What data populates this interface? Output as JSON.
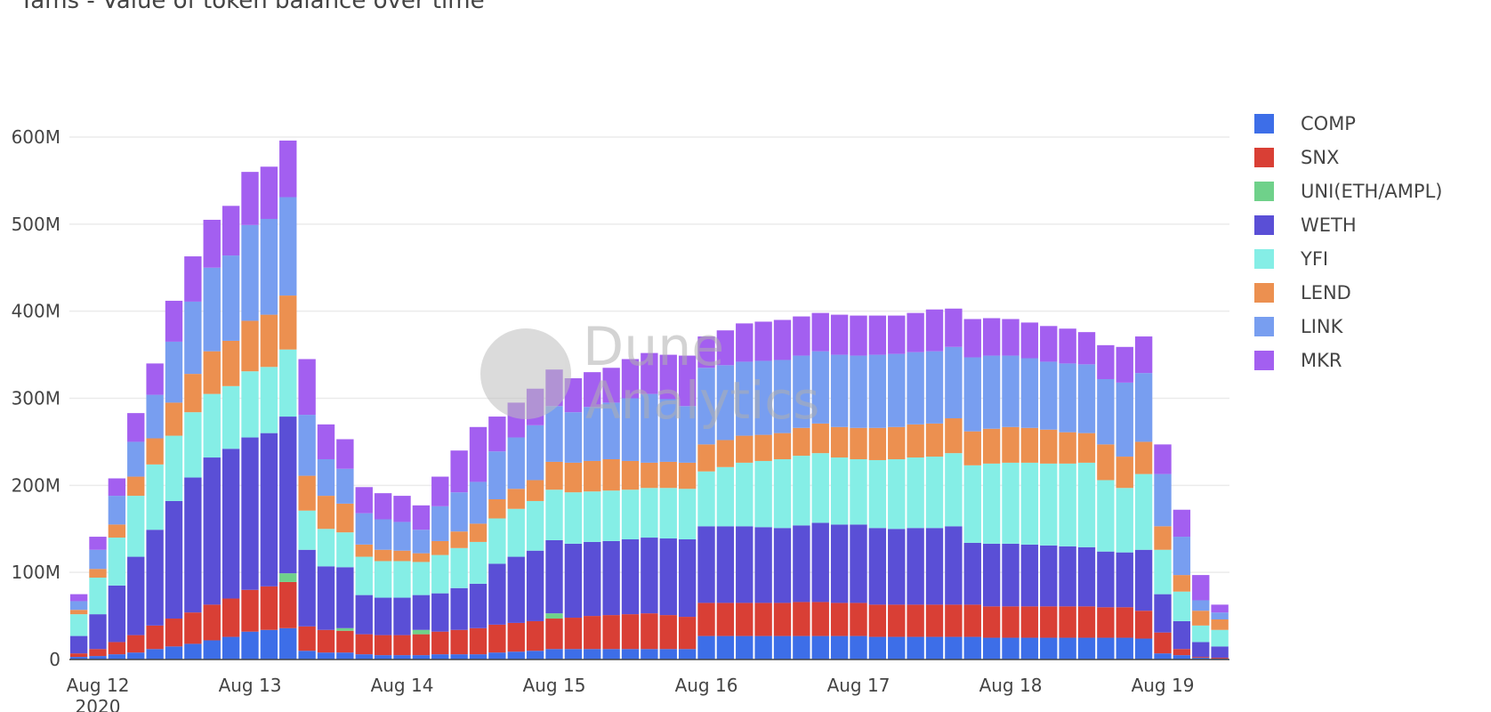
{
  "chart_data": {
    "type": "bar",
    "stacked": true,
    "title": "Yams - Value of token balance over time",
    "xlabel": "",
    "ylabel": "",
    "ylim": [
      0,
      620000000
    ],
    "y_ticks": [
      0,
      100000000,
      200000000,
      300000000,
      400000000,
      500000000,
      600000000
    ],
    "y_tick_labels": [
      "0",
      "100M",
      "200M",
      "300M",
      "400M",
      "500M",
      "600M"
    ],
    "x_ticks": [
      "2020-08-12",
      "2020-08-13",
      "2020-08-14",
      "2020-08-15",
      "2020-08-16",
      "2020-08-17",
      "2020-08-18",
      "2020-08-19"
    ],
    "x_tick_labels": [
      "Aug 12",
      "Aug 13",
      "Aug 14",
      "Aug 15",
      "Aug 16",
      "Aug 17",
      "Aug 18",
      "Aug 19"
    ],
    "x_year_label": "2020",
    "grid": true,
    "legend_position": "right",
    "value_unit": "M",
    "x": [
      "2020-08-11 21:00",
      "2020-08-12 00:00",
      "2020-08-12 03:00",
      "2020-08-12 06:00",
      "2020-08-12 09:00",
      "2020-08-12 12:00",
      "2020-08-12 15:00",
      "2020-08-12 18:00",
      "2020-08-12 21:00",
      "2020-08-13 00:00",
      "2020-08-13 03:00",
      "2020-08-13 06:00",
      "2020-08-13 09:00",
      "2020-08-13 12:00",
      "2020-08-13 15:00",
      "2020-08-13 18:00",
      "2020-08-13 21:00",
      "2020-08-14 00:00",
      "2020-08-14 03:00",
      "2020-08-14 06:00",
      "2020-08-14 09:00",
      "2020-08-14 12:00",
      "2020-08-14 15:00",
      "2020-08-14 18:00",
      "2020-08-14 21:00",
      "2020-08-15 00:00",
      "2020-08-15 03:00",
      "2020-08-15 06:00",
      "2020-08-15 09:00",
      "2020-08-15 12:00",
      "2020-08-15 15:00",
      "2020-08-15 18:00",
      "2020-08-15 21:00",
      "2020-08-16 00:00",
      "2020-08-16 03:00",
      "2020-08-16 06:00",
      "2020-08-16 09:00",
      "2020-08-16 12:00",
      "2020-08-16 15:00",
      "2020-08-16 18:00",
      "2020-08-16 21:00",
      "2020-08-17 00:00",
      "2020-08-17 03:00",
      "2020-08-17 06:00",
      "2020-08-17 09:00",
      "2020-08-17 12:00",
      "2020-08-17 15:00",
      "2020-08-17 18:00",
      "2020-08-17 21:00",
      "2020-08-18 00:00",
      "2020-08-18 03:00",
      "2020-08-18 06:00",
      "2020-08-18 09:00",
      "2020-08-18 12:00",
      "2020-08-18 15:00",
      "2020-08-18 18:00",
      "2020-08-18 21:00",
      "2020-08-19 00:00",
      "2020-08-19 03:00",
      "2020-08-19 06:00",
      "2020-08-19 09:00"
    ],
    "series": [
      {
        "name": "COMP",
        "color": "#3d6ee8",
        "values": [
          3,
          4,
          6,
          8,
          12,
          15,
          18,
          22,
          26,
          32,
          34,
          36,
          10,
          8,
          8,
          6,
          5,
          5,
          5,
          6,
          6,
          6,
          8,
          9,
          10,
          12,
          12,
          12,
          12,
          12,
          12,
          12,
          12,
          27,
          27,
          27,
          27,
          27,
          27,
          27,
          27,
          27,
          26,
          26,
          26,
          26,
          26,
          26,
          25,
          25,
          25,
          25,
          25,
          25,
          25,
          25,
          24,
          7,
          5,
          2,
          1
        ]
      },
      {
        "name": "SNX",
        "color": "#d93f35",
        "values": [
          4,
          8,
          14,
          20,
          27,
          32,
          36,
          41,
          44,
          48,
          50,
          53,
          28,
          26,
          25,
          23,
          23,
          23,
          24,
          26,
          28,
          30,
          32,
          33,
          34,
          35,
          36,
          38,
          39,
          40,
          41,
          39,
          37,
          38,
          38,
          38,
          38,
          38,
          39,
          39,
          38,
          38,
          37,
          37,
          37,
          37,
          37,
          37,
          36,
          36,
          36,
          36,
          36,
          36,
          35,
          35,
          32,
          24,
          7,
          1,
          1
        ]
      },
      {
        "name": "UNI(ETH/AMPL)",
        "color": "#6fd18a",
        "values": [
          0,
          0,
          0,
          0,
          0,
          0,
          0,
          0,
          0,
          0,
          0,
          10,
          0,
          0,
          3,
          0,
          0,
          0,
          5,
          0,
          0,
          0,
          0,
          0,
          0,
          6,
          0,
          0,
          0,
          0,
          0,
          0,
          0,
          0,
          0,
          0,
          0,
          0,
          0,
          0,
          0,
          0,
          0,
          0,
          0,
          0,
          0,
          0,
          0,
          0,
          0,
          0,
          0,
          0,
          0,
          0,
          0,
          0,
          0,
          0,
          0
        ]
      },
      {
        "name": "WETH",
        "color": "#5a4fd6",
        "values": [
          20,
          40,
          65,
          90,
          110,
          135,
          155,
          169,
          172,
          175,
          176,
          180,
          88,
          73,
          70,
          45,
          43,
          43,
          40,
          44,
          48,
          51,
          70,
          76,
          81,
          84,
          85,
          85,
          85,
          86,
          87,
          88,
          89,
          88,
          88,
          88,
          87,
          86,
          88,
          91,
          90,
          90,
          88,
          87,
          88,
          88,
          90,
          71,
          72,
          72,
          71,
          70,
          69,
          68,
          64,
          63,
          70,
          44,
          32,
          17,
          13
        ]
      },
      {
        "name": "YFI",
        "color": "#85eee6",
        "values": [
          25,
          42,
          55,
          70,
          75,
          75,
          75,
          73,
          72,
          76,
          76,
          77,
          45,
          43,
          40,
          44,
          42,
          42,
          38,
          44,
          46,
          48,
          52,
          55,
          57,
          58,
          59,
          58,
          58,
          57,
          57,
          58,
          58,
          63,
          68,
          73,
          76,
          79,
          80,
          80,
          77,
          75,
          78,
          80,
          81,
          82,
          84,
          89,
          92,
          93,
          94,
          94,
          95,
          97,
          82,
          74,
          87,
          51,
          34,
          19,
          19
        ]
      },
      {
        "name": "LEND",
        "color": "#ec9050",
        "values": [
          5,
          10,
          15,
          22,
          30,
          38,
          44,
          49,
          52,
          58,
          60,
          62,
          40,
          38,
          33,
          14,
          13,
          12,
          10,
          16,
          19,
          21,
          22,
          23,
          24,
          32,
          34,
          35,
          36,
          33,
          29,
          30,
          30,
          31,
          31,
          31,
          30,
          30,
          32,
          34,
          35,
          36,
          37,
          37,
          38,
          38,
          40,
          39,
          40,
          41,
          40,
          39,
          36,
          34,
          41,
          36,
          37,
          27,
          19,
          17,
          12
        ]
      },
      {
        "name": "LINK",
        "color": "#789ef0",
        "values": [
          10,
          22,
          33,
          40,
          50,
          70,
          83,
          96,
          98,
          110,
          110,
          113,
          70,
          42,
          40,
          36,
          35,
          33,
          27,
          40,
          45,
          48,
          55,
          59,
          63,
          64,
          58,
          62,
          65,
          72,
          79,
          72,
          65,
          88,
          86,
          85,
          85,
          84,
          83,
          83,
          83,
          83,
          84,
          84,
          83,
          83,
          82,
          85,
          84,
          82,
          80,
          78,
          79,
          79,
          75,
          85,
          79,
          60,
          44,
          12,
          8
        ]
      },
      {
        "name": "MKR",
        "color": "#a35ff0",
        "values": [
          8,
          15,
          20,
          33,
          36,
          47,
          52,
          55,
          57,
          61,
          60,
          65,
          64,
          40,
          34,
          30,
          30,
          30,
          28,
          34,
          48,
          63,
          40,
          40,
          42,
          42,
          39,
          40,
          40,
          45,
          47,
          51,
          58,
          36,
          40,
          44,
          45,
          46,
          45,
          44,
          46,
          46,
          45,
          44,
          45,
          48,
          44,
          44,
          43,
          42,
          41,
          41,
          40,
          37,
          39,
          41,
          42,
          34,
          31,
          29,
          9
        ]
      }
    ]
  },
  "watermark": {
    "line1": "Dune",
    "line2": "Analytics"
  }
}
